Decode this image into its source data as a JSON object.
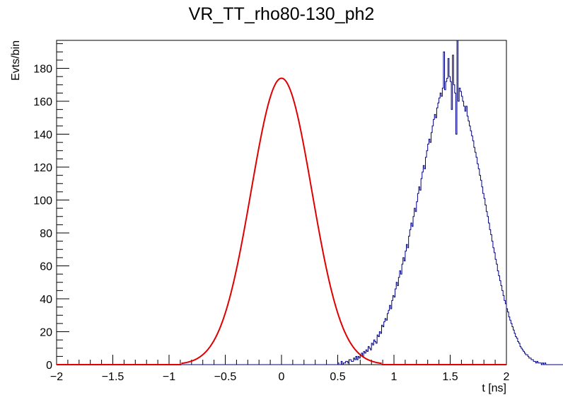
{
  "chart_data": {
    "type": "histogram",
    "title": "VR_TT_rho80-130_ph2",
    "xlabel": "t [ns]",
    "ylabel": "Evts/bin",
    "xlim": [
      -2,
      2
    ],
    "ylim": [
      0,
      197
    ],
    "xticks": [
      -2,
      -1.5,
      -1,
      -0.5,
      0,
      0.5,
      1,
      1.5,
      2
    ],
    "xtick_labels": [
      "−2",
      "−1.5",
      "−1",
      "−0.5",
      "0",
      "0.5",
      "1",
      "1.5",
      "2"
    ],
    "yticks": [
      0,
      20,
      40,
      60,
      80,
      100,
      120,
      140,
      160,
      180
    ],
    "ytick_labels": [
      "0",
      "20",
      "40",
      "60",
      "80",
      "100",
      "120",
      "140",
      "160",
      "180"
    ],
    "series": [
      {
        "name": "histogram",
        "kind": "step",
        "color": "#000080",
        "bin_width": 0.01,
        "x_start": -2.0,
        "values": [
          0,
          0,
          0,
          0,
          0,
          0,
          0,
          0,
          0,
          0,
          0,
          0,
          0,
          0,
          0,
          0,
          0,
          0,
          0,
          0,
          0,
          0,
          0,
          0,
          0,
          0,
          0,
          0,
          0,
          0,
          0,
          0,
          0,
          0,
          0,
          0,
          0,
          0,
          0,
          0,
          0,
          0,
          0,
          0,
          0,
          0,
          0,
          0,
          0,
          0,
          0,
          0,
          0,
          0,
          0,
          0,
          0,
          0,
          0,
          0,
          0,
          0,
          0,
          0,
          0,
          0,
          0,
          0,
          0,
          0,
          0,
          0,
          0,
          0,
          0,
          0,
          0,
          0,
          0,
          0,
          0,
          0,
          0,
          0,
          0,
          0,
          0,
          0,
          0,
          0,
          0,
          0,
          0,
          0,
          0,
          0,
          0,
          0,
          0,
          0,
          0,
          0,
          0,
          0,
          0,
          0,
          0,
          0,
          0,
          0,
          0,
          0,
          0,
          0,
          0,
          0,
          0,
          0,
          0,
          0,
          0,
          0,
          0,
          0,
          0,
          0,
          0,
          0,
          0,
          0,
          0,
          0,
          0,
          0,
          0,
          0,
          0,
          0,
          0,
          0,
          0,
          0,
          0,
          0,
          0,
          0,
          0,
          0,
          0,
          0,
          0,
          0,
          0,
          0,
          0,
          0,
          0,
          0,
          0,
          0,
          0,
          0,
          0,
          0,
          0,
          0,
          0,
          0,
          0,
          0,
          0,
          0,
          0,
          0,
          0,
          0,
          0,
          0,
          0,
          0,
          0,
          0,
          0,
          0,
          0,
          0,
          0,
          0,
          0,
          0,
          0,
          0,
          0,
          0,
          0,
          0,
          0,
          0,
          0,
          0,
          0,
          0,
          0,
          0,
          0,
          0,
          0,
          0,
          0,
          0,
          0,
          0,
          0,
          0,
          0,
          0,
          0,
          0,
          0,
          0,
          0,
          0,
          0,
          0,
          0,
          0,
          0,
          0,
          0,
          0,
          0,
          0,
          0,
          0,
          0,
          0,
          0,
          0,
          0,
          0,
          0,
          0,
          0,
          0,
          0,
          0,
          0,
          0,
          0,
          0,
          1,
          0,
          0,
          2,
          0,
          1,
          1,
          2,
          2,
          1,
          3,
          3,
          2,
          2,
          4,
          3,
          5,
          3,
          5,
          4,
          6,
          7,
          5,
          8,
          7,
          9,
          8,
          11,
          10,
          9,
          13,
          12,
          15,
          14,
          13,
          18,
          17,
          20,
          19,
          24,
          23,
          26,
          28,
          27,
          31,
          33,
          36,
          34,
          39,
          42,
          41,
          46,
          50,
          48,
          53,
          57,
          55,
          61,
          65,
          63,
          69,
          73,
          71,
          78,
          82,
          86,
          84,
          90,
          95,
          93,
          99,
          104,
          108,
          106,
          113,
          117,
          121,
          119,
          126,
          130,
          134,
          137,
          135,
          141,
          145,
          149,
          152,
          150,
          156,
          159,
          162,
          165,
          163,
          168,
          190,
          167,
          172,
          174,
          186,
          175,
          172,
          155,
          188,
          170,
          165,
          140,
          198,
          160,
          168,
          166,
          163,
          160,
          157,
          154,
          157,
          151,
          148,
          145,
          142,
          139,
          136,
          132,
          129,
          126,
          122,
          119,
          115,
          112,
          108,
          104,
          101,
          97,
          93,
          90,
          86,
          82,
          79,
          75,
          71,
          68,
          64,
          61,
          57,
          54,
          51,
          48,
          45,
          42,
          39,
          37,
          34,
          32,
          29,
          27,
          25,
          23,
          21,
          19,
          17,
          16,
          14,
          13,
          11,
          10,
          9,
          8,
          7,
          6,
          6,
          5,
          4,
          4,
          3,
          3,
          2,
          2,
          1,
          2,
          1,
          1,
          1,
          0,
          1,
          0,
          1,
          0,
          0,
          0,
          0,
          0,
          0,
          0,
          0,
          0,
          0,
          0,
          0,
          0,
          0,
          0,
          0,
          0,
          0,
          0,
          0,
          0,
          0,
          0,
          0,
          0,
          0,
          0,
          0,
          0,
          0,
          0,
          0,
          0,
          0,
          0,
          0,
          0,
          0,
          0,
          0,
          0,
          0,
          0,
          0,
          0,
          0,
          0,
          0,
          0,
          0,
          0,
          0,
          0,
          0,
          0,
          0,
          0,
          0,
          0,
          0,
          0,
          0,
          0,
          0,
          0,
          0,
          0,
          0,
          0,
          0,
          0,
          0,
          0,
          0,
          0,
          0,
          0,
          0,
          0,
          0,
          0,
          0,
          0,
          0,
          0,
          0,
          0,
          0,
          0,
          0,
          0,
          0,
          0,
          0,
          0,
          0,
          0,
          0,
          0,
          0,
          0,
          0,
          0,
          0,
          0,
          0,
          0,
          0,
          0,
          0,
          0,
          0,
          0,
          0,
          0,
          0,
          0,
          0,
          0,
          0,
          0,
          0,
          0,
          0,
          0,
          0,
          0,
          0,
          0,
          0,
          0,
          0,
          0,
          0,
          0,
          0,
          0,
          0,
          0,
          0,
          0,
          0,
          0,
          0,
          0,
          0,
          0,
          0,
          0,
          0,
          0,
          0,
          0,
          0,
          0,
          0,
          0,
          0,
          0,
          0,
          0,
          0,
          0,
          0,
          0,
          0,
          0,
          0,
          0,
          0,
          0,
          0,
          0,
          0,
          0,
          0,
          0,
          0,
          0,
          0,
          0,
          0,
          0,
          0,
          0,
          0,
          0,
          0,
          0,
          0,
          0,
          0,
          0,
          0,
          0,
          0,
          0,
          0,
          0,
          0,
          0,
          0,
          0,
          0,
          0,
          0,
          0,
          0,
          0,
          0,
          0,
          0,
          0,
          0,
          0,
          0,
          0,
          0,
          0,
          0,
          0,
          0,
          0,
          0,
          0,
          0,
          0,
          0,
          0,
          0,
          0,
          0,
          0,
          0,
          0,
          0,
          0,
          0,
          0,
          0,
          0,
          0,
          0,
          0,
          0,
          0,
          0,
          0,
          0,
          0
        ]
      },
      {
        "name": "gaussian fit",
        "kind": "function",
        "color": "#e00000",
        "amplitude": 174,
        "mean": 0.0,
        "sigma": 0.27
      }
    ]
  }
}
